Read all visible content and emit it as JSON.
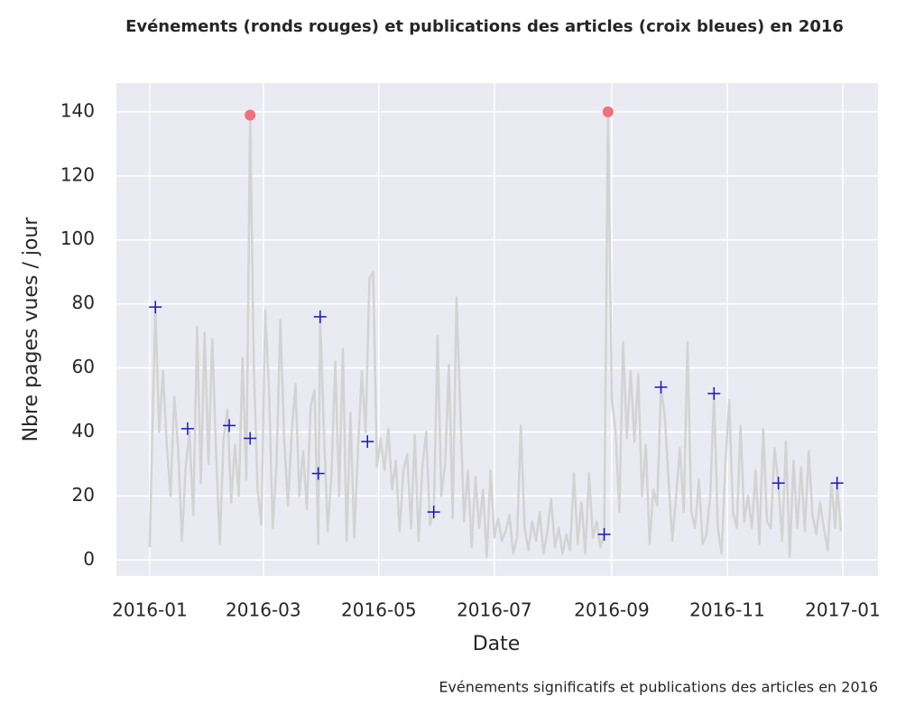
{
  "chart_data": {
    "type": "line",
    "title": "Evénements (ronds rouges) et publications des articles (croix bleues) en 2016",
    "xlabel": "Date",
    "ylabel": "Nbre pages vues / jour",
    "caption": "Evénements significatifs et publications des articles en 2016",
    "grid": true,
    "xlim": [
      -17.6,
      384.6
    ],
    "xticks": [
      {
        "value": 0,
        "label": "2016-01"
      },
      {
        "value": 60,
        "label": "2016-03"
      },
      {
        "value": 121,
        "label": "2016-05"
      },
      {
        "value": 182,
        "label": "2016-07"
      },
      {
        "value": 244,
        "label": "2016-09"
      },
      {
        "value": 305,
        "label": "2016-11"
      },
      {
        "value": 366,
        "label": "2017-01"
      }
    ],
    "ylim": [
      -5,
      149
    ],
    "yticks": [
      0,
      20,
      40,
      60,
      80,
      100,
      120,
      140
    ],
    "series": [
      {
        "type": "line",
        "color": "#d3d3d3",
        "x": [
          0,
          3,
          5,
          7,
          9,
          11,
          13,
          15,
          17,
          19,
          21,
          23,
          25,
          27,
          29,
          31,
          33,
          35,
          37,
          39,
          41,
          43,
          45,
          47,
          49,
          51,
          53,
          55,
          57,
          59,
          61,
          63,
          65,
          67,
          69,
          71,
          73,
          75,
          77,
          79,
          81,
          83,
          85,
          87,
          89,
          90,
          92,
          94,
          96,
          98,
          100,
          102,
          104,
          106,
          108,
          110,
          112,
          114,
          116,
          118,
          120,
          122,
          124,
          126,
          128,
          130,
          132,
          134,
          136,
          138,
          140,
          142,
          144,
          146,
          148,
          150,
          152,
          154,
          156,
          158,
          160,
          162,
          164,
          166,
          168,
          170,
          172,
          174,
          176,
          178,
          180,
          182,
          184,
          186,
          188,
          190,
          192,
          194,
          196,
          198,
          200,
          202,
          204,
          206,
          208,
          210,
          212,
          214,
          216,
          218,
          220,
          222,
          224,
          226,
          228,
          230,
          232,
          234,
          236,
          238,
          240,
          242,
          244,
          246,
          248,
          250,
          252,
          254,
          256,
          258,
          260,
          262,
          264,
          266,
          268,
          270,
          272,
          274,
          276,
          278,
          280,
          282,
          284,
          286,
          288,
          290,
          292,
          294,
          296,
          298,
          300,
          302,
          304,
          306,
          308,
          310,
          312,
          314,
          316,
          318,
          320,
          322,
          324,
          326,
          328,
          330,
          332,
          334,
          336,
          338,
          340,
          342,
          344,
          346,
          348,
          350,
          352,
          354,
          356,
          358,
          360,
          362,
          363,
          365
        ],
        "values": [
          4,
          79,
          40,
          59,
          36,
          20,
          51,
          35,
          6,
          29,
          40,
          14,
          73,
          24,
          71,
          30,
          69,
          34,
          5,
          38,
          47,
          18,
          36,
          20,
          63,
          25,
          139,
          60,
          22,
          11,
          78,
          53,
          10,
          30,
          75,
          38,
          17,
          40,
          55,
          20,
          34,
          16,
          48,
          53,
          5,
          76,
          40,
          9,
          27,
          62,
          20,
          66,
          6,
          46,
          7,
          35,
          59,
          40,
          88,
          90,
          29,
          38,
          28,
          41,
          22,
          31,
          9,
          28,
          33,
          10,
          39,
          6,
          29,
          40,
          11,
          15,
          70,
          20,
          30,
          61,
          13,
          82,
          47,
          12,
          28,
          4,
          26,
          10,
          22,
          1,
          28,
          7,
          13,
          6,
          9,
          14,
          2,
          7,
          42,
          10,
          3,
          12,
          6,
          15,
          2,
          9,
          19,
          4,
          10,
          2,
          8,
          3,
          27,
          5,
          18,
          2,
          27,
          7,
          12,
          4,
          8,
          140,
          50,
          40,
          15,
          68,
          38,
          59,
          37,
          58,
          20,
          36,
          5,
          22,
          17,
          54,
          45,
          25,
          6,
          20,
          35,
          15,
          68,
          15,
          10,
          25,
          5,
          8,
          20,
          52,
          10,
          2,
          30,
          50,
          15,
          10,
          42,
          12,
          20,
          10,
          28,
          5,
          41,
          12,
          10,
          35,
          24,
          6,
          37,
          1,
          31,
          10,
          29,
          9,
          34,
          14,
          8,
          18,
          10,
          3,
          24,
          10,
          24,
          9
        ]
      },
      {
        "type": "scatter",
        "marker": "circle",
        "color": "#f0707c",
        "x": [
          53,
          242
        ],
        "values": [
          139,
          140
        ]
      },
      {
        "type": "scatter",
        "marker": "plus",
        "color": "#1515d0",
        "x": [
          3,
          20,
          42,
          53,
          89,
          90,
          115,
          150,
          240,
          270,
          298,
          332,
          363
        ],
        "values": [
          79,
          41,
          42,
          38,
          27,
          76,
          37,
          15,
          8,
          54,
          52,
          24,
          24
        ]
      }
    ]
  }
}
